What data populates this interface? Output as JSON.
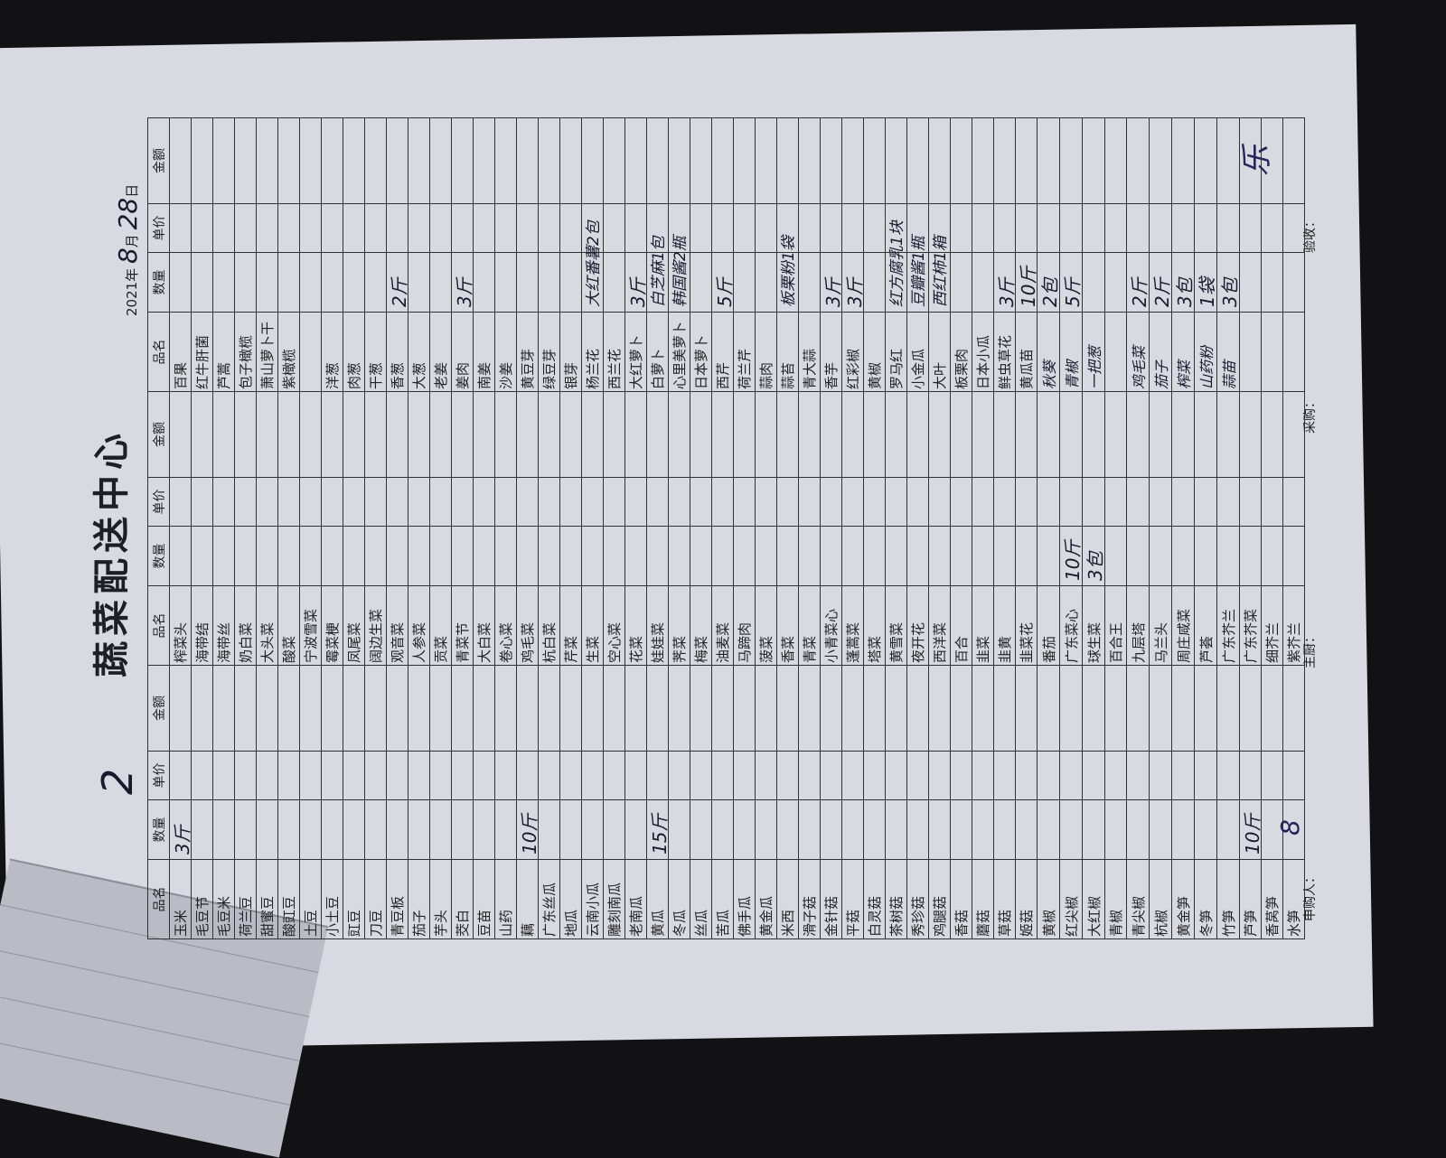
{
  "document": {
    "doc_number": "2",
    "title": "蔬菜配送中心",
    "date": {
      "year": "2021",
      "year_label": "年",
      "month": "8",
      "month_label": "月",
      "day": "28",
      "day_label": "日"
    },
    "columns": [
      "品名",
      "数量",
      "单价",
      "金额"
    ],
    "groups": [
      {
        "items": [
          {
            "name": "玉米",
            "qty": "3斤"
          },
          {
            "name": "毛豆节"
          },
          {
            "name": "毛豆米"
          },
          {
            "name": "荷兰豆"
          },
          {
            "name": "甜蜜豆"
          },
          {
            "name": "酸豇豆"
          },
          {
            "name": "土豆"
          },
          {
            "name": "小土豆"
          },
          {
            "name": "豇豆"
          },
          {
            "name": "刀豆"
          },
          {
            "name": "青豆板"
          },
          {
            "name": "茄子"
          },
          {
            "name": "芋头"
          },
          {
            "name": "茭白"
          },
          {
            "name": "豆苗"
          },
          {
            "name": "山药"
          },
          {
            "name": "藕",
            "qty": "10斤"
          },
          {
            "name": "广东丝瓜"
          },
          {
            "name": "地瓜"
          },
          {
            "name": "云南小瓜"
          },
          {
            "name": "雕刻南瓜"
          },
          {
            "name": "老南瓜"
          },
          {
            "name": "黄瓜",
            "qty": "15斤"
          },
          {
            "name": "冬瓜"
          },
          {
            "name": "丝瓜"
          },
          {
            "name": "苦瓜"
          },
          {
            "name": "佛手瓜"
          },
          {
            "name": "黄金瓜"
          },
          {
            "name": "米西"
          },
          {
            "name": "滑子菇"
          },
          {
            "name": "金针菇"
          },
          {
            "name": "平菇"
          },
          {
            "name": "白灵菇"
          },
          {
            "name": "茶树菇"
          },
          {
            "name": "秀珍菇"
          },
          {
            "name": "鸡腿菇"
          },
          {
            "name": "香菇"
          },
          {
            "name": "蘑菇"
          },
          {
            "name": "草菇"
          },
          {
            "name": "姬菇"
          },
          {
            "name": "黄椒"
          },
          {
            "name": "红尖椒"
          },
          {
            "name": "大红椒"
          },
          {
            "name": "青椒"
          },
          {
            "name": "青尖椒"
          },
          {
            "name": "杭椒"
          },
          {
            "name": "黄金笋"
          },
          {
            "name": "冬笋"
          },
          {
            "name": "竹笋"
          },
          {
            "name": "芦笋",
            "qty": "10斤"
          },
          {
            "name": "香莴笋"
          },
          {
            "name": "水笋"
          }
        ]
      },
      {
        "items": [
          {
            "name": "榨菜头"
          },
          {
            "name": "海带结"
          },
          {
            "name": "海带丝"
          },
          {
            "name": "奶白菜"
          },
          {
            "name": "大头菜"
          },
          {
            "name": "酸菜"
          },
          {
            "name": "宁波雪菜"
          },
          {
            "name": "霉菜梗"
          },
          {
            "name": "凤尾菜"
          },
          {
            "name": "阔边生菜"
          },
          {
            "name": "观音菜"
          },
          {
            "name": "人参菜"
          },
          {
            "name": "贡菜"
          },
          {
            "name": "青菜节"
          },
          {
            "name": "大白菜"
          },
          {
            "name": "卷心菜"
          },
          {
            "name": "鸡毛菜"
          },
          {
            "name": "杭白菜"
          },
          {
            "name": "芹菜"
          },
          {
            "name": "生菜"
          },
          {
            "name": "空心菜"
          },
          {
            "name": "花菜"
          },
          {
            "name": "娃娃菜"
          },
          {
            "name": "荠菜"
          },
          {
            "name": "梅菜"
          },
          {
            "name": "油麦菜"
          },
          {
            "name": "马蹄肉"
          },
          {
            "name": "菠菜"
          },
          {
            "name": "香菜"
          },
          {
            "name": "青菜"
          },
          {
            "name": "小青菜心"
          },
          {
            "name": "蓬蒿菜"
          },
          {
            "name": "塔菜"
          },
          {
            "name": "黄雪菜"
          },
          {
            "name": "夜开花"
          },
          {
            "name": "西洋菜"
          },
          {
            "name": "百合"
          },
          {
            "name": "韭菜"
          },
          {
            "name": "韭黄"
          },
          {
            "name": "韭菜花"
          },
          {
            "name": "番茄"
          },
          {
            "name": "广东菜心",
            "qty": "10斤"
          },
          {
            "name": "球生菜",
            "qty": "3包"
          },
          {
            "name": "百合王"
          },
          {
            "name": "九层塔"
          },
          {
            "name": "马兰头"
          },
          {
            "name": "周庄咸菜"
          },
          {
            "name": "芦荟"
          },
          {
            "name": "广东芥兰"
          },
          {
            "name": "广东芥菜"
          },
          {
            "name": "细芥兰"
          },
          {
            "name": "紫芥兰"
          }
        ]
      },
      {
        "items": [
          {
            "name": "百果"
          },
          {
            "name": "红牛肝菌"
          },
          {
            "name": "芦蒿"
          },
          {
            "name": "包子橄榄"
          },
          {
            "name": "萧山萝卜干"
          },
          {
            "name": "紫橄榄"
          },
          {
            "name": ""
          },
          {
            "name": "洋葱"
          },
          {
            "name": "肉葱"
          },
          {
            "name": "干葱"
          },
          {
            "name": "香葱",
            "qty": "2斤"
          },
          {
            "name": "大葱"
          },
          {
            "name": "老姜"
          },
          {
            "name": "姜肉",
            "qty": "3斤"
          },
          {
            "name": "南姜"
          },
          {
            "name": "沙姜"
          },
          {
            "name": "黄豆芽"
          },
          {
            "name": "绿豆芽"
          },
          {
            "name": "银芽"
          },
          {
            "name": "杨兰花",
            "qty": "大红番薯2包"
          },
          {
            "name": "西兰花"
          },
          {
            "name": "大红萝卜",
            "qty": "3斤"
          },
          {
            "name": "白萝卜",
            "qty": "白芝麻1包"
          },
          {
            "name": "心里美萝卜",
            "qty": "韩国酱2瓶"
          },
          {
            "name": "日本萝卜"
          },
          {
            "name": "西芹",
            "qty": "5斤"
          },
          {
            "name": "荷兰芹"
          },
          {
            "name": "蒜肉"
          },
          {
            "name": "蒜苔",
            "qty": "板栗粉1袋"
          },
          {
            "name": "青大蒜"
          },
          {
            "name": "香芋",
            "qty": "3斤"
          },
          {
            "name": "红彩椒",
            "qty": "3斤"
          },
          {
            "name": "黄椒"
          },
          {
            "name": "罗马红",
            "qty": "红方腐乳1块"
          },
          {
            "name": "小金瓜",
            "qty": "豆瓣酱1瓶"
          },
          {
            "name": "大叶",
            "qty": "西红柿1箱"
          },
          {
            "name": "板栗肉"
          },
          {
            "name": "日本小瓜"
          },
          {
            "name": "鲜虫草花",
            "qty": "3斤"
          },
          {
            "name": "黄瓜苗",
            "qty": "10斤"
          },
          {
            "name": "秋葵",
            "qty": "2包",
            "handwritten": true
          },
          {
            "name": "青椒",
            "qty": "5斤",
            "handwritten": true
          },
          {
            "name": "一把葱",
            "handwritten": true
          },
          {
            "name": ""
          },
          {
            "name": "鸡毛菜",
            "qty": "2斤",
            "handwritten": true
          },
          {
            "name": "茄子",
            "qty": "2斤",
            "handwritten": true
          },
          {
            "name": "榨菜",
            "qty": "3包",
            "handwritten": true
          },
          {
            "name": "山药粉",
            "qty": "1袋",
            "handwritten": true
          },
          {
            "name": "蒜苗",
            "qty": "3包",
            "handwritten": true
          },
          {
            "name": ""
          },
          {
            "name": ""
          },
          {
            "name": ""
          }
        ]
      }
    ],
    "signatures": {
      "approver_mark": "乐",
      "purchaser_mark": "8"
    },
    "footer": {
      "requester": "申购人：",
      "chef": "主厨：",
      "buyer": "采购：",
      "inspector": "验收："
    }
  }
}
